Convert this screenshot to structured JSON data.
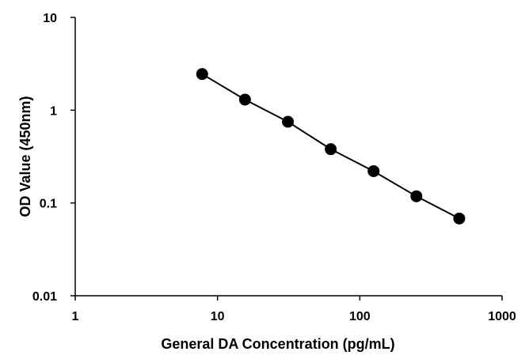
{
  "chart_data": {
    "type": "scatter",
    "title": "",
    "xlabel": "General DA Concentration  (pg/mL)",
    "ylabel": "OD Value (450nm)",
    "x_scale": "log",
    "y_scale": "log",
    "xlim": [
      1,
      1000
    ],
    "ylim": [
      0.01,
      10
    ],
    "x_ticks": [
      1,
      10,
      100,
      1000
    ],
    "x_tick_labels": [
      "1",
      "10",
      "100",
      "1000"
    ],
    "y_ticks": [
      0.01,
      0.1,
      1,
      10
    ],
    "y_tick_labels": [
      "0.01",
      "0.1",
      "1",
      "10"
    ],
    "grid": false,
    "legend": "none",
    "series": [
      {
        "x": [
          7.8,
          15.6,
          31.25,
          62.5,
          125,
          250,
          500
        ],
        "y": [
          2.45,
          1.3,
          0.75,
          0.38,
          0.22,
          0.118,
          0.068
        ],
        "marker": "circle",
        "line": true,
        "color": "#000000"
      }
    ]
  }
}
